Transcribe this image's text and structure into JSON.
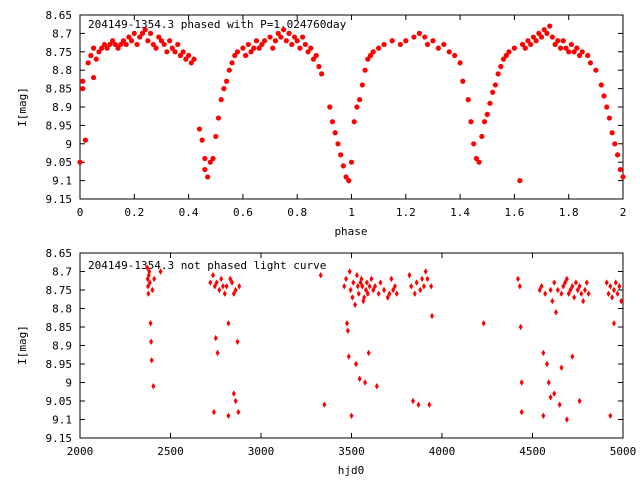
{
  "chart_data": [
    {
      "type": "scatter",
      "title": "204149-1354.3 phased with P=1.024760day",
      "xlabel": "phase",
      "ylabel": "I[mag]",
      "xlim": [
        0,
        2
      ],
      "ylim": [
        8.65,
        9.15
      ],
      "y_inverted": true,
      "x_ticks": [
        "0",
        "0.2",
        "0.4",
        "0.6",
        "0.8",
        "1",
        "1.2",
        "1.4",
        "1.6",
        "1.8",
        "2"
      ],
      "y_ticks": [
        "8.65",
        "8.7",
        "8.75",
        "8.8",
        "8.85",
        "8.9",
        "8.95",
        "9",
        "9.05",
        "9.1",
        "9.15"
      ],
      "marker": "filled-circle",
      "color": "#ff0000",
      "points": [
        [
          0.0,
          9.05
        ],
        [
          0.01,
          8.83
        ],
        [
          0.01,
          8.85
        ],
        [
          0.02,
          8.99
        ],
        [
          0.03,
          8.78
        ],
        [
          0.04,
          8.76
        ],
        [
          0.05,
          8.74
        ],
        [
          0.05,
          8.82
        ],
        [
          0.06,
          8.77
        ],
        [
          0.07,
          8.75
        ],
        [
          0.08,
          8.74
        ],
        [
          0.09,
          8.73
        ],
        [
          0.1,
          8.74
        ],
        [
          0.11,
          8.73
        ],
        [
          0.12,
          8.72
        ],
        [
          0.13,
          8.73
        ],
        [
          0.14,
          8.74
        ],
        [
          0.15,
          8.73
        ],
        [
          0.16,
          8.72
        ],
        [
          0.17,
          8.73
        ],
        [
          0.18,
          8.71
        ],
        [
          0.19,
          8.72
        ],
        [
          0.2,
          8.7
        ],
        [
          0.21,
          8.73
        ],
        [
          0.22,
          8.71
        ],
        [
          0.23,
          8.7
        ],
        [
          0.24,
          8.69
        ],
        [
          0.25,
          8.72
        ],
        [
          0.26,
          8.7
        ],
        [
          0.27,
          8.73
        ],
        [
          0.28,
          8.74
        ],
        [
          0.29,
          8.71
        ],
        [
          0.3,
          8.72
        ],
        [
          0.31,
          8.73
        ],
        [
          0.32,
          8.75
        ],
        [
          0.33,
          8.72
        ],
        [
          0.34,
          8.74
        ],
        [
          0.35,
          8.75
        ],
        [
          0.36,
          8.73
        ],
        [
          0.37,
          8.76
        ],
        [
          0.38,
          8.75
        ],
        [
          0.39,
          8.77
        ],
        [
          0.4,
          8.76
        ],
        [
          0.41,
          8.78
        ],
        [
          0.42,
          8.77
        ],
        [
          0.44,
          8.96
        ],
        [
          0.45,
          8.99
        ],
        [
          0.46,
          9.04
        ],
        [
          0.46,
          9.07
        ],
        [
          0.47,
          9.09
        ],
        [
          0.48,
          9.05
        ],
        [
          0.49,
          9.04
        ],
        [
          0.5,
          8.98
        ],
        [
          0.51,
          8.93
        ],
        [
          0.52,
          8.88
        ],
        [
          0.53,
          8.85
        ],
        [
          0.54,
          8.83
        ],
        [
          0.55,
          8.8
        ],
        [
          0.56,
          8.78
        ],
        [
          0.57,
          8.76
        ],
        [
          0.58,
          8.75
        ],
        [
          0.6,
          8.74
        ],
        [
          0.61,
          8.76
        ],
        [
          0.62,
          8.73
        ],
        [
          0.63,
          8.75
        ],
        [
          0.64,
          8.74
        ],
        [
          0.65,
          8.72
        ],
        [
          0.66,
          8.74
        ],
        [
          0.67,
          8.73
        ],
        [
          0.68,
          8.72
        ],
        [
          0.7,
          8.71
        ],
        [
          0.71,
          8.74
        ],
        [
          0.72,
          8.72
        ],
        [
          0.73,
          8.7
        ],
        [
          0.74,
          8.71
        ],
        [
          0.75,
          8.69
        ],
        [
          0.76,
          8.72
        ],
        [
          0.77,
          8.7
        ],
        [
          0.78,
          8.73
        ],
        [
          0.79,
          8.71
        ],
        [
          0.8,
          8.72
        ],
        [
          0.81,
          8.74
        ],
        [
          0.82,
          8.71
        ],
        [
          0.83,
          8.73
        ],
        [
          0.84,
          8.75
        ],
        [
          0.85,
          8.74
        ],
        [
          0.86,
          8.77
        ],
        [
          0.87,
          8.76
        ],
        [
          0.88,
          8.79
        ],
        [
          0.89,
          8.81
        ],
        [
          0.92,
          8.9
        ],
        [
          0.93,
          8.94
        ],
        [
          0.94,
          8.97
        ],
        [
          0.95,
          9.0
        ],
        [
          0.96,
          9.03
        ],
        [
          0.97,
          9.06
        ],
        [
          0.98,
          9.09
        ],
        [
          0.99,
          9.1
        ],
        [
          1.0,
          9.05
        ],
        [
          1.01,
          8.94
        ],
        [
          1.02,
          8.9
        ],
        [
          1.03,
          8.88
        ],
        [
          1.04,
          8.84
        ],
        [
          1.05,
          8.8
        ],
        [
          1.06,
          8.77
        ],
        [
          1.07,
          8.76
        ],
        [
          1.08,
          8.75
        ],
        [
          1.1,
          8.74
        ],
        [
          1.12,
          8.73
        ],
        [
          1.15,
          8.72
        ],
        [
          1.18,
          8.73
        ],
        [
          1.2,
          8.72
        ],
        [
          1.23,
          8.71
        ],
        [
          1.25,
          8.7
        ],
        [
          1.27,
          8.71
        ],
        [
          1.28,
          8.73
        ],
        [
          1.3,
          8.72
        ],
        [
          1.32,
          8.74
        ],
        [
          1.34,
          8.73
        ],
        [
          1.36,
          8.75
        ],
        [
          1.38,
          8.76
        ],
        [
          1.4,
          8.78
        ],
        [
          1.41,
          8.83
        ],
        [
          1.43,
          8.88
        ],
        [
          1.44,
          8.94
        ],
        [
          1.45,
          9.0
        ],
        [
          1.46,
          9.04
        ],
        [
          1.47,
          9.05
        ],
        [
          1.48,
          8.98
        ],
        [
          1.49,
          8.94
        ],
        [
          1.5,
          8.92
        ],
        [
          1.51,
          8.89
        ],
        [
          1.52,
          8.86
        ],
        [
          1.53,
          8.84
        ],
        [
          1.54,
          8.81
        ],
        [
          1.55,
          8.79
        ],
        [
          1.56,
          8.77
        ],
        [
          1.57,
          8.76
        ],
        [
          1.58,
          8.75
        ],
        [
          1.6,
          8.74
        ],
        [
          1.62,
          9.1
        ],
        [
          1.63,
          8.73
        ],
        [
          1.64,
          8.74
        ],
        [
          1.65,
          8.72
        ],
        [
          1.66,
          8.73
        ],
        [
          1.67,
          8.71
        ],
        [
          1.68,
          8.72
        ],
        [
          1.69,
          8.7
        ],
        [
          1.7,
          8.71
        ],
        [
          1.71,
          8.69
        ],
        [
          1.72,
          8.7
        ],
        [
          1.73,
          8.68
        ],
        [
          1.74,
          8.71
        ],
        [
          1.75,
          8.73
        ],
        [
          1.76,
          8.72
        ],
        [
          1.77,
          8.74
        ],
        [
          1.78,
          8.72
        ],
        [
          1.79,
          8.74
        ],
        [
          1.8,
          8.75
        ],
        [
          1.81,
          8.73
        ],
        [
          1.82,
          8.75
        ],
        [
          1.83,
          8.74
        ],
        [
          1.84,
          8.76
        ],
        [
          1.85,
          8.75
        ],
        [
          1.87,
          8.76
        ],
        [
          1.88,
          8.78
        ],
        [
          1.9,
          8.8
        ],
        [
          1.92,
          8.84
        ],
        [
          1.93,
          8.87
        ],
        [
          1.94,
          8.9
        ],
        [
          1.95,
          8.93
        ],
        [
          1.96,
          8.97
        ],
        [
          1.97,
          9.0
        ],
        [
          1.98,
          9.03
        ],
        [
          1.99,
          9.07
        ],
        [
          2.0,
          9.09
        ]
      ]
    },
    {
      "type": "scatter",
      "title": "204149-1354.3 not phased light curve",
      "xlabel": "hjd0",
      "ylabel": "I[mag]",
      "xlim": [
        2000,
        5000
      ],
      "ylim": [
        8.65,
        9.15
      ],
      "y_inverted": true,
      "x_ticks": [
        "2000",
        "2500",
        "3000",
        "3500",
        "4000",
        "4500",
        "5000"
      ],
      "y_ticks": [
        "8.65",
        "8.7",
        "8.75",
        "8.8",
        "8.85",
        "8.9",
        "8.95",
        "9",
        "9.05",
        "9.1",
        "9.15"
      ],
      "marker": "filled-diamond",
      "color": "#ff0000",
      "points": [
        [
          2372,
          8.69
        ],
        [
          2374,
          8.72
        ],
        [
          2376,
          8.74
        ],
        [
          2378,
          8.76
        ],
        [
          2380,
          8.71
        ],
        [
          2383,
          8.7
        ],
        [
          2386,
          8.73
        ],
        [
          2390,
          8.84
        ],
        [
          2393,
          8.89
        ],
        [
          2396,
          8.94
        ],
        [
          2400,
          8.75
        ],
        [
          2405,
          9.01
        ],
        [
          2410,
          8.72
        ],
        [
          2445,
          8.7
        ],
        [
          2720,
          8.73
        ],
        [
          2735,
          8.71
        ],
        [
          2745,
          8.74
        ],
        [
          2750,
          8.88
        ],
        [
          2755,
          8.73
        ],
        [
          2760,
          8.92
        ],
        [
          2770,
          8.75
        ],
        [
          2780,
          8.72
        ],
        [
          2790,
          8.74
        ],
        [
          2800,
          8.76
        ],
        [
          2810,
          8.74
        ],
        [
          2820,
          8.84
        ],
        [
          2830,
          8.72
        ],
        [
          2840,
          8.73
        ],
        [
          2850,
          8.76
        ],
        [
          2860,
          8.75
        ],
        [
          2870,
          8.89
        ],
        [
          2880,
          8.74
        ],
        [
          2740,
          9.08
        ],
        [
          2820,
          9.09
        ],
        [
          2850,
          9.03
        ],
        [
          2860,
          9.05
        ],
        [
          2875,
          9.08
        ],
        [
          3330,
          8.71
        ],
        [
          3350,
          9.06
        ],
        [
          3460,
          8.74
        ],
        [
          3470,
          8.72
        ],
        [
          3475,
          8.84
        ],
        [
          3480,
          8.86
        ],
        [
          3485,
          8.93
        ],
        [
          3490,
          8.7
        ],
        [
          3495,
          8.75
        ],
        [
          3500,
          9.09
        ],
        [
          3505,
          8.77
        ],
        [
          3510,
          8.73
        ],
        [
          3520,
          8.79
        ],
        [
          3525,
          8.95
        ],
        [
          3530,
          8.71
        ],
        [
          3535,
          8.74
        ],
        [
          3540,
          8.76
        ],
        [
          3545,
          8.99
        ],
        [
          3550,
          8.73
        ],
        [
          3555,
          8.72
        ],
        [
          3560,
          8.74
        ],
        [
          3565,
          8.78
        ],
        [
          3570,
          8.77
        ],
        [
          3575,
          9.0
        ],
        [
          3580,
          8.75
        ],
        [
          3585,
          8.73
        ],
        [
          3590,
          8.76
        ],
        [
          3595,
          8.92
        ],
        [
          3600,
          8.74
        ],
        [
          3610,
          8.72
        ],
        [
          3620,
          8.75
        ],
        [
          3630,
          8.74
        ],
        [
          3640,
          9.01
        ],
        [
          3650,
          8.76
        ],
        [
          3660,
          8.73
        ],
        [
          3680,
          8.75
        ],
        [
          3700,
          8.77
        ],
        [
          3710,
          8.76
        ],
        [
          3720,
          8.72
        ],
        [
          3730,
          8.75
        ],
        [
          3740,
          8.74
        ],
        [
          3750,
          8.76
        ],
        [
          3820,
          8.71
        ],
        [
          3830,
          8.74
        ],
        [
          3840,
          9.05
        ],
        [
          3850,
          8.76
        ],
        [
          3860,
          8.73
        ],
        [
          3870,
          9.06
        ],
        [
          3880,
          8.75
        ],
        [
          3890,
          8.72
        ],
        [
          3900,
          8.74
        ],
        [
          3910,
          8.7
        ],
        [
          3920,
          8.72
        ],
        [
          3930,
          9.06
        ],
        [
          3940,
          8.74
        ],
        [
          3945,
          8.82
        ],
        [
          4230,
          8.84
        ],
        [
          4420,
          8.72
        ],
        [
          4430,
          8.74
        ],
        [
          4435,
          8.85
        ],
        [
          4440,
          9.0
        ],
        [
          4440,
          9.08
        ],
        [
          4540,
          8.75
        ],
        [
          4550,
          8.74
        ],
        [
          4560,
          8.92
        ],
        [
          4570,
          8.76
        ],
        [
          4580,
          8.95
        ],
        [
          4590,
          9.0
        ],
        [
          4600,
          8.75
        ],
        [
          4600,
          9.04
        ],
        [
          4610,
          8.78
        ],
        [
          4620,
          8.73
        ],
        [
          4630,
          8.81
        ],
        [
          4640,
          8.75
        ],
        [
          4650,
          9.06
        ],
        [
          4660,
          8.76
        ],
        [
          4670,
          8.74
        ],
        [
          4680,
          8.73
        ],
        [
          4690,
          8.72
        ],
        [
          4700,
          8.76
        ],
        [
          4710,
          8.75
        ],
        [
          4720,
          8.74
        ],
        [
          4730,
          8.77
        ],
        [
          4740,
          8.73
        ],
        [
          4750,
          8.75
        ],
        [
          4760,
          8.74
        ],
        [
          4770,
          8.76
        ],
        [
          4780,
          8.78
        ],
        [
          4790,
          8.75
        ],
        [
          4800,
          8.73
        ],
        [
          4810,
          8.76
        ],
        [
          4560,
          9.09
        ],
        [
          4620,
          9.03
        ],
        [
          4660,
          8.96
        ],
        [
          4690,
          9.1
        ],
        [
          4720,
          8.93
        ],
        [
          4760,
          9.05
        ],
        [
          4910,
          8.73
        ],
        [
          4920,
          8.76
        ],
        [
          4930,
          8.74
        ],
        [
          4940,
          8.77
        ],
        [
          4950,
          8.75
        ],
        [
          4960,
          8.73
        ],
        [
          4970,
          8.76
        ],
        [
          4980,
          8.74
        ],
        [
          4990,
          8.78
        ],
        [
          4930,
          9.09
        ],
        [
          4950,
          8.84
        ]
      ]
    }
  ]
}
